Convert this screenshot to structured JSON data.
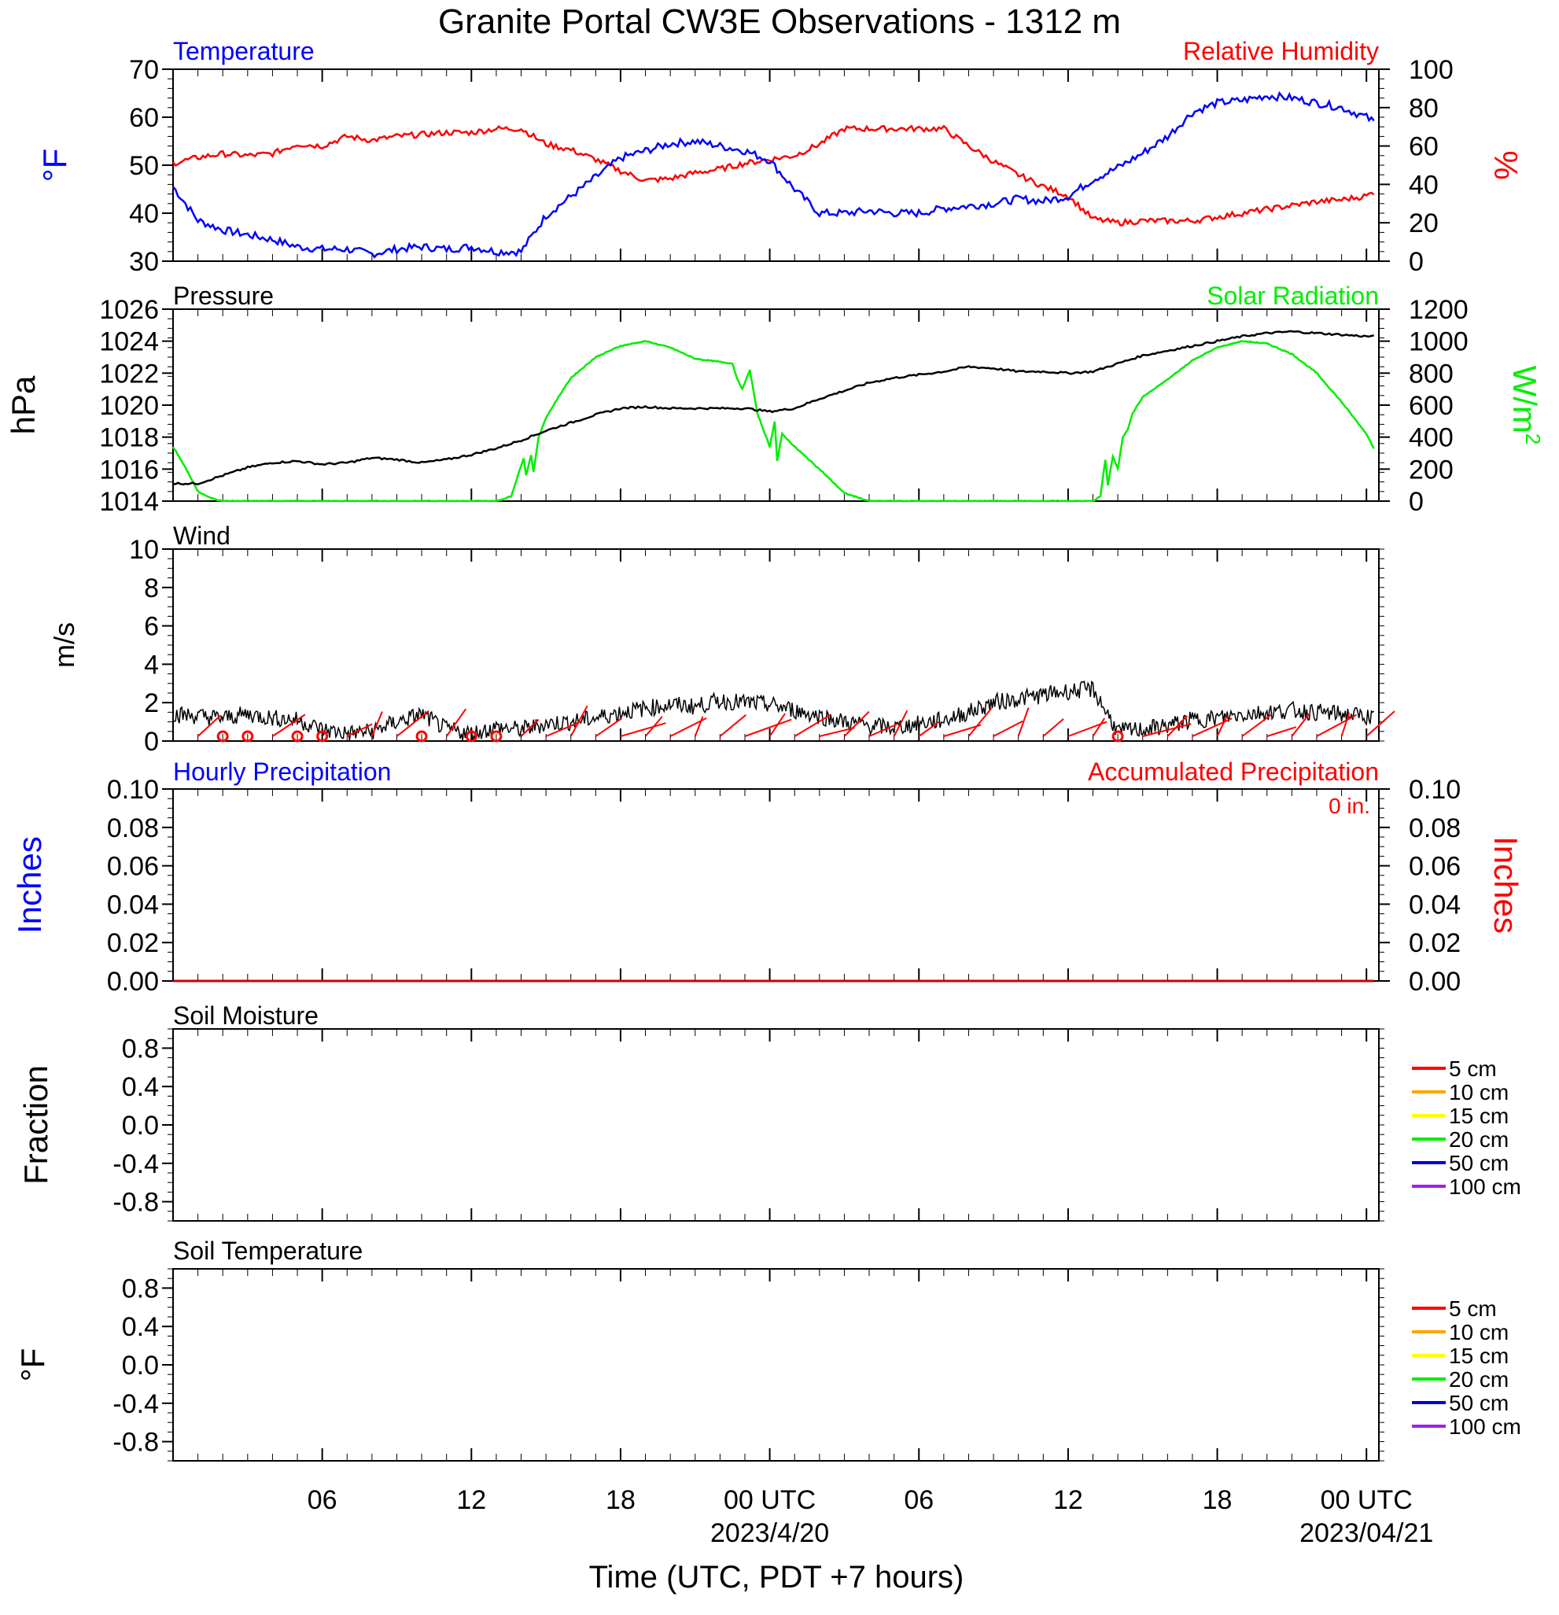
{
  "title": "Granite Portal CW3E Observations - 1312 m",
  "x_axis": {
    "label": "Time (UTC, PDT +7 hours)",
    "ticks": [
      {
        "h": 6,
        "label": "06",
        "sub": ""
      },
      {
        "h": 12,
        "label": "12",
        "sub": ""
      },
      {
        "h": 18,
        "label": "18",
        "sub": ""
      },
      {
        "h": 24,
        "label": "00 UTC",
        "sub": "2023/4/20"
      },
      {
        "h": 30,
        "label": "06",
        "sub": ""
      },
      {
        "h": 36,
        "label": "12",
        "sub": ""
      },
      {
        "h": 42,
        "label": "18",
        "sub": ""
      },
      {
        "h": 48,
        "label": "00 UTC",
        "sub": "2023/04/21"
      }
    ],
    "range_hours": [
      0,
      48.5
    ]
  },
  "colors": {
    "temperature": "#0000ff",
    "humidity": "#ff0000",
    "pressure": "#000000",
    "solar": "#00ee00",
    "wind": "#000000",
    "barb": "#ff0000"
  },
  "panels": {
    "temp_rh": {
      "left_title": "Temperature",
      "right_title": "Relative Humidity",
      "left_unit": "°F",
      "right_unit": "%",
      "left_ticks": [
        "70",
        "60",
        "50",
        "40",
        "30"
      ],
      "right_ticks": [
        "100",
        "80",
        "60",
        "40",
        "20",
        "0"
      ]
    },
    "pressure_solar": {
      "left_title": "Pressure",
      "right_title": "Solar Radiation",
      "left_unit": "hPa",
      "right_unit": "W/m",
      "right_unit_sup": "2",
      "left_ticks": [
        "1026",
        "1024",
        "1022",
        "1020",
        "1018",
        "1016",
        "1014"
      ],
      "right_ticks": [
        "1200",
        "1000",
        "800",
        "600",
        "400",
        "200",
        "0"
      ]
    },
    "wind": {
      "left_title": "Wind",
      "left_unit": "m/s",
      "left_ticks": [
        "10",
        "8",
        "6",
        "4",
        "2",
        "0"
      ]
    },
    "precip": {
      "left_title": "Hourly Precipitation",
      "right_title": "Accumulated Precipitation",
      "accum_label": "0 in.",
      "left_unit": "Inches",
      "right_unit": "Inches",
      "left_ticks": [
        "0.10",
        "0.08",
        "0.06",
        "0.04",
        "0.02",
        "0.00"
      ],
      "right_ticks": [
        "0.10",
        "0.08",
        "0.06",
        "0.04",
        "0.02",
        "0.00"
      ]
    },
    "soil_moisture": {
      "left_title": "Soil Moisture",
      "left_unit": "Fraction",
      "left_ticks": [
        "0.8",
        "0.4",
        "0.0",
        "-0.4",
        "-0.8"
      ],
      "legend": [
        "5 cm",
        "10 cm",
        "15 cm",
        "20 cm",
        "50 cm",
        "100 cm"
      ]
    },
    "soil_temp": {
      "left_title": "Soil Temperature",
      "left_unit": "°F",
      "left_ticks": [
        "0.8",
        "0.4",
        "0.0",
        "-0.4",
        "-0.8"
      ],
      "legend": [
        "5 cm",
        "10 cm",
        "15 cm",
        "20 cm",
        "50 cm",
        "100 cm"
      ]
    }
  },
  "legend_colors": [
    "#ff0000",
    "#ffa500",
    "#ffff00",
    "#00ee00",
    "#0000dd",
    "#a020f0"
  ],
  "chart_data": [
    {
      "type": "line",
      "title": "Temperature",
      "ylabel": "°F",
      "ylim": [
        30,
        70
      ],
      "series": [
        {
          "name": "Temperature",
          "x": [
            0,
            0.5,
            1,
            2,
            3,
            4,
            5,
            6,
            7,
            8,
            9,
            10,
            11,
            12,
            13,
            14,
            15,
            16,
            17,
            18,
            19,
            20,
            21,
            22,
            23,
            24,
            25,
            26,
            27,
            28,
            29,
            30,
            31,
            32,
            33,
            34,
            35,
            36,
            37,
            38,
            39,
            40,
            41,
            42,
            43,
            44,
            45,
            46,
            47,
            48,
            48.3
          ],
          "values": [
            45.5,
            42,
            38.5,
            36.5,
            35.5,
            34.5,
            33,
            32.5,
            32.5,
            31.5,
            32.5,
            33,
            32.5,
            33,
            32,
            32,
            39.5,
            43.5,
            47.5,
            51.5,
            53,
            54.5,
            55,
            54,
            53,
            51,
            45,
            40,
            40,
            40.5,
            40,
            40,
            41,
            41.5,
            42,
            43,
            42.5,
            43.5,
            47,
            49.5,
            52.5,
            56,
            61,
            63,
            63.5,
            64.5,
            64,
            63,
            62,
            60,
            59
          ]
        }
      ]
    },
    {
      "type": "line",
      "title": "Relative Humidity",
      "ylabel": "%",
      "ylim": [
        0,
        100
      ],
      "series": [
        {
          "name": "Relative Humidity",
          "x": [
            0,
            1,
            2,
            3,
            4,
            5,
            6,
            7,
            8,
            9,
            10,
            11,
            12,
            13,
            14,
            15,
            16,
            17,
            18,
            19,
            20,
            21,
            22,
            23,
            24,
            25,
            26,
            27,
            28,
            29,
            30,
            31,
            32,
            33,
            34,
            35,
            36,
            37,
            38,
            39,
            40,
            41,
            42,
            43,
            44,
            45,
            46,
            47,
            48,
            48.3
          ],
          "values": [
            51,
            54,
            56,
            55,
            56,
            61,
            60,
            65,
            63,
            65,
            66,
            67,
            67,
            69,
            69,
            61,
            58,
            53,
            47,
            42,
            43,
            46,
            48,
            51,
            53,
            55,
            61,
            69,
            69,
            69,
            69,
            69,
            60,
            52,
            45,
            39,
            34,
            22,
            20,
            21,
            21,
            21,
            23,
            25,
            27,
            29,
            31,
            32,
            34,
            36
          ]
        }
      ]
    },
    {
      "type": "line",
      "title": "Pressure",
      "ylabel": "hPa",
      "ylim": [
        1014,
        1026
      ],
      "series": [
        {
          "name": "Pressure",
          "x": [
            0,
            1,
            2,
            3,
            4,
            5,
            6,
            7,
            8,
            9,
            10,
            11,
            12,
            13,
            14,
            15,
            16,
            17,
            18,
            19,
            20,
            21,
            22,
            23,
            24,
            25,
            26,
            27,
            28,
            29,
            30,
            31,
            32,
            33,
            34,
            35,
            36,
            37,
            38,
            39,
            40,
            41,
            42,
            43,
            44,
            45,
            46,
            47,
            48,
            48.3
          ],
          "values": [
            1015.1,
            1015.1,
            1015.6,
            1016.1,
            1016.4,
            1016.5,
            1016.3,
            1016.4,
            1016.7,
            1016.6,
            1016.4,
            1016.6,
            1016.9,
            1017.3,
            1017.8,
            1018.4,
            1018.9,
            1019.4,
            1019.8,
            1019.9,
            1019.8,
            1019.8,
            1019.8,
            1019.8,
            1019.6,
            1019.8,
            1020.4,
            1020.9,
            1021.4,
            1021.7,
            1021.9,
            1022.1,
            1022.4,
            1022.3,
            1022.1,
            1022.1,
            1022.0,
            1022.1,
            1022.6,
            1023.1,
            1023.4,
            1023.7,
            1024.0,
            1024.3,
            1024.5,
            1024.6,
            1024.5,
            1024.4,
            1024.3,
            1024.3
          ]
        }
      ]
    },
    {
      "type": "line",
      "title": "Solar Radiation",
      "ylabel": "W/m2",
      "ylim": [
        0,
        1200
      ],
      "series": [
        {
          "name": "Solar Radiation",
          "x": [
            0,
            0.5,
            0.8,
            1,
            1.5,
            2,
            3,
            5,
            7,
            9,
            11,
            13,
            13.6,
            14.1,
            14.2,
            14.4,
            14.5,
            14.7,
            15,
            15.5,
            16,
            17,
            18,
            19,
            20,
            21,
            22,
            22.5,
            22.7,
            22.9,
            23.2,
            23.5,
            24,
            24.2,
            24.3,
            24.5,
            25,
            26,
            27,
            28,
            30,
            33,
            36,
            37,
            37.3,
            37.5,
            37.6,
            37.8,
            38,
            38.2,
            38.4,
            38.6,
            39,
            40,
            41,
            42,
            43,
            44,
            45,
            46,
            47,
            48,
            48.3
          ],
          "values": [
            340,
            210,
            120,
            60,
            20,
            0,
            0,
            0,
            0,
            0,
            0,
            0,
            30,
            270,
            160,
            290,
            180,
            400,
            520,
            650,
            770,
            900,
            970,
            1000,
            960,
            890,
            870,
            860,
            760,
            700,
            820,
            550,
            340,
            500,
            250,
            420,
            340,
            200,
            50,
            0,
            0,
            0,
            0,
            0,
            30,
            260,
            100,
            280,
            200,
            400,
            450,
            550,
            650,
            760,
            880,
            960,
            1000,
            985,
            920,
            800,
            620,
            420,
            330
          ]
        }
      ]
    },
    {
      "type": "line",
      "title": "Wind",
      "ylabel": "m/s",
      "ylim": [
        0,
        10
      ],
      "series": [
        {
          "name": "Wind",
          "x": [
            0,
            1,
            2,
            3,
            4,
            5,
            6,
            7,
            8,
            9,
            10,
            11,
            12,
            13,
            14,
            15,
            16,
            17,
            18,
            19,
            20,
            21,
            22,
            23,
            24,
            25,
            26,
            27,
            28,
            29,
            30,
            31,
            32,
            33,
            34,
            35,
            36,
            37,
            38,
            39,
            40,
            41,
            42,
            43,
            44,
            45,
            46,
            47,
            48,
            48.3
          ],
          "values": [
            1.4,
            1.3,
            1.2,
            1.4,
            1.2,
            1.1,
            0.6,
            0.4,
            0.5,
            1.0,
            1.4,
            0.6,
            0.4,
            0.7,
            0.6,
            0.9,
            1.0,
            1.2,
            1.5,
            1.7,
            1.9,
            1.8,
            2.1,
            2.0,
            1.9,
            1.6,
            1.3,
            1.0,
            0.8,
            0.7,
            0.9,
            1.1,
            1.5,
            2.0,
            2.2,
            2.4,
            2.6,
            2.7,
            0.5,
            0.6,
            0.8,
            1.1,
            1.2,
            1.4,
            1.5,
            1.6,
            1.5,
            1.4,
            1.3,
            1.2
          ]
        }
      ]
    },
    {
      "type": "line",
      "title": "Hourly Precipitation",
      "ylabel": "Inches",
      "ylim": [
        0,
        0.1
      ],
      "series": [
        {
          "name": "Hourly Precipitation",
          "x": [
            0,
            48.3
          ],
          "values": [
            0,
            0
          ]
        },
        {
          "name": "Accumulated Precipitation",
          "x": [
            0,
            48.3
          ],
          "values": [
            0,
            0
          ]
        }
      ]
    },
    {
      "type": "line",
      "title": "Soil Moisture",
      "ylabel": "Fraction",
      "ylim": [
        -1,
        1
      ],
      "series": []
    },
    {
      "type": "line",
      "title": "Soil Temperature",
      "ylabel": "°F",
      "ylim": [
        -1,
        1
      ],
      "series": []
    }
  ]
}
